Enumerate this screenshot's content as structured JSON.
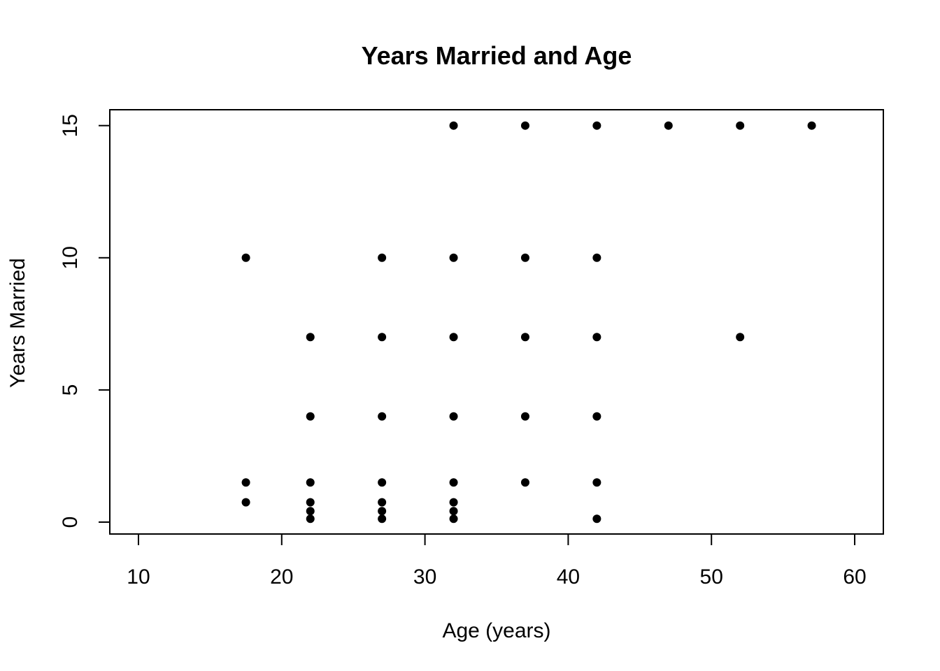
{
  "chart_data": {
    "type": "scatter",
    "title": "Years Married and Age",
    "xlabel": "Age (years)",
    "ylabel": "Years Married",
    "xlim": [
      8,
      62
    ],
    "ylim": [
      -0.45,
      15.6
    ],
    "xticks": [
      10,
      20,
      30,
      40,
      50,
      60
    ],
    "yticks": [
      0,
      5,
      10,
      15
    ],
    "grid": false,
    "legend": "none",
    "point_color": "#000000",
    "points": [
      {
        "x": 17.5,
        "y": 10
      },
      {
        "x": 17.5,
        "y": 1.5
      },
      {
        "x": 17.5,
        "y": 0.75
      },
      {
        "x": 22,
        "y": 7
      },
      {
        "x": 22,
        "y": 4
      },
      {
        "x": 22,
        "y": 1.5
      },
      {
        "x": 22,
        "y": 0.75
      },
      {
        "x": 22,
        "y": 0.417
      },
      {
        "x": 22,
        "y": 0.125
      },
      {
        "x": 27,
        "y": 10
      },
      {
        "x": 27,
        "y": 7
      },
      {
        "x": 27,
        "y": 4
      },
      {
        "x": 27,
        "y": 1.5
      },
      {
        "x": 27,
        "y": 0.75
      },
      {
        "x": 27,
        "y": 0.417
      },
      {
        "x": 27,
        "y": 0.125
      },
      {
        "x": 32,
        "y": 15
      },
      {
        "x": 32,
        "y": 10
      },
      {
        "x": 32,
        "y": 7
      },
      {
        "x": 32,
        "y": 4
      },
      {
        "x": 32,
        "y": 1.5
      },
      {
        "x": 32,
        "y": 0.75
      },
      {
        "x": 32,
        "y": 0.417
      },
      {
        "x": 32,
        "y": 0.125
      },
      {
        "x": 37,
        "y": 15
      },
      {
        "x": 37,
        "y": 10
      },
      {
        "x": 37,
        "y": 7
      },
      {
        "x": 37,
        "y": 4
      },
      {
        "x": 37,
        "y": 1.5
      },
      {
        "x": 42,
        "y": 15
      },
      {
        "x": 42,
        "y": 10
      },
      {
        "x": 42,
        "y": 7
      },
      {
        "x": 42,
        "y": 4
      },
      {
        "x": 42,
        "y": 1.5
      },
      {
        "x": 42,
        "y": 0.125
      },
      {
        "x": 47,
        "y": 15
      },
      {
        "x": 52,
        "y": 15
      },
      {
        "x": 52,
        "y": 7
      },
      {
        "x": 57,
        "y": 15
      }
    ]
  }
}
